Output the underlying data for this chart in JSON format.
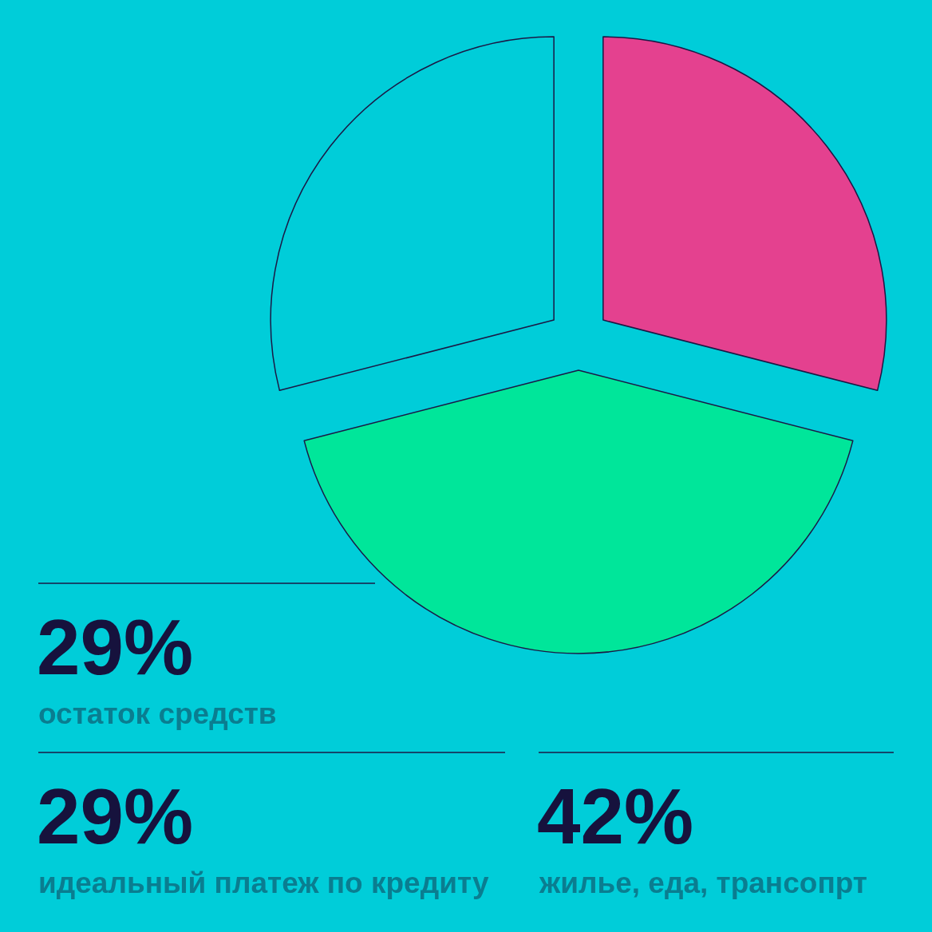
{
  "chart_data": {
    "type": "pie",
    "categories": [
      null,
      null,
      null
    ],
    "values": [
      29,
      42,
      29
    ],
    "colors": [
      "#e4418f",
      "#00e69a",
      "#00cdd9"
    ],
    "annotations": [
      "29%",
      "остаток средств",
      "29%",
      "идеальный платеж по кредиту",
      "42%",
      "жилье, еда, трансопрт"
    ]
  }
}
